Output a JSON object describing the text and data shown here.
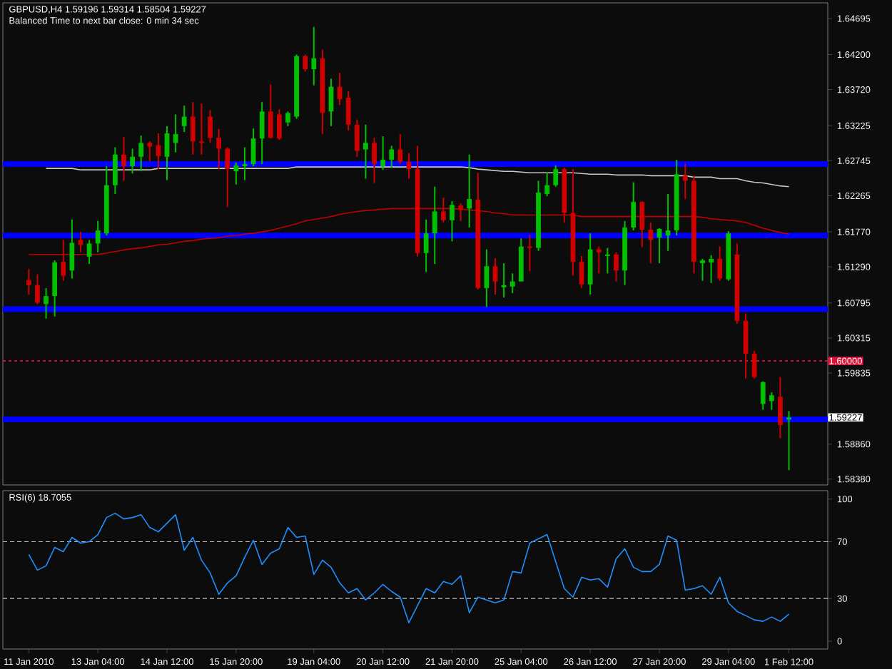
{
  "chart_data": [
    {
      "type": "candlestick",
      "title": "GBPUSD,H4  1.59196 1.59314 1.58504 1.59227",
      "subtitle": "Balanced Time to next bar close: 0 min 34 sec",
      "categories": [
        null,
        null,
        null,
        null,
        null,
        null,
        null,
        null,
        null,
        null,
        null,
        null,
        null,
        null,
        null,
        null,
        null,
        null,
        null,
        null,
        null,
        null,
        null,
        null,
        null,
        null,
        null,
        null,
        null,
        null,
        null,
        null,
        null,
        null,
        null,
        null,
        null,
        null,
        null,
        null,
        null,
        null,
        null,
        null,
        null,
        null,
        null,
        null,
        null,
        null,
        null,
        null,
        null,
        null,
        null,
        null,
        null,
        null,
        null,
        null,
        null,
        null,
        null,
        null,
        null,
        null,
        null,
        null,
        null,
        null,
        null,
        null,
        null,
        null,
        null,
        null,
        null,
        null,
        null,
        null,
        null,
        null,
        null,
        null,
        null,
        null,
        null,
        null,
        null
      ],
      "ohlc": [
        [
          1.6111,
          1.6126,
          1.6091,
          1.6104
        ],
        [
          1.6104,
          1.6119,
          1.6078,
          1.608
        ],
        [
          1.6078,
          1.61,
          1.6058,
          1.6089
        ],
        [
          1.6089,
          1.6138,
          1.6061,
          1.6135
        ],
        [
          1.6136,
          1.6166,
          1.611,
          1.6117
        ],
        [
          1.6124,
          1.6194,
          1.6113,
          1.6162
        ],
        [
          1.6166,
          1.6177,
          1.6149,
          1.6159
        ],
        [
          1.6143,
          1.6166,
          1.6133,
          1.6161
        ],
        [
          1.6161,
          1.6192,
          1.6149,
          1.6179
        ],
        [
          1.6175,
          1.6267,
          1.6172,
          1.6241
        ],
        [
          1.6241,
          1.6293,
          1.6229,
          1.6283
        ],
        [
          1.6283,
          1.6307,
          1.6247,
          1.6267
        ],
        [
          1.6267,
          1.6291,
          1.6257,
          1.628
        ],
        [
          1.628,
          1.6309,
          1.626,
          1.6299
        ],
        [
          1.6299,
          1.6301,
          1.6274,
          1.6294
        ],
        [
          1.6296,
          1.6312,
          1.6263,
          1.6281
        ],
        [
          1.628,
          1.6322,
          1.6248,
          1.6312
        ],
        [
          1.6299,
          1.6338,
          1.6286,
          1.6311
        ],
        [
          1.6322,
          1.635,
          1.6314,
          1.6335
        ],
        [
          1.6335,
          1.6355,
          1.6283,
          1.6301
        ],
        [
          1.6301,
          1.6353,
          1.6283,
          1.6299
        ],
        [
          1.6335,
          1.6344,
          1.6299,
          1.6306
        ],
        [
          1.6306,
          1.6318,
          1.6263,
          1.6291
        ],
        [
          1.6291,
          1.6293,
          1.6211,
          1.6263
        ],
        [
          1.626,
          1.6272,
          1.6242,
          1.6268
        ],
        [
          1.6267,
          1.6293,
          1.6248,
          1.627
        ],
        [
          1.627,
          1.6319,
          1.6267,
          1.6305
        ],
        [
          1.6305,
          1.6355,
          1.627,
          1.6342
        ],
        [
          1.6342,
          1.6379,
          1.6305,
          1.6306
        ],
        [
          1.6338,
          1.6345,
          1.6303,
          1.6305
        ],
        [
          1.6327,
          1.6342,
          1.6322,
          1.634
        ],
        [
          1.6335,
          1.642,
          1.6332,
          1.6418
        ],
        [
          1.6418,
          1.642,
          1.6397,
          1.64
        ],
        [
          1.64,
          1.6458,
          1.6378,
          1.6415
        ],
        [
          1.6415,
          1.6427,
          1.6311,
          1.634
        ],
        [
          1.6342,
          1.6387,
          1.6322,
          1.6376
        ],
        [
          1.6376,
          1.6395,
          1.6351,
          1.6359
        ],
        [
          1.6361,
          1.637,
          1.6316,
          1.6324
        ],
        [
          1.6324,
          1.6331,
          1.628,
          1.6288
        ],
        [
          1.629,
          1.6324,
          1.625,
          1.6299
        ],
        [
          1.6299,
          1.6306,
          1.6244,
          1.627
        ],
        [
          1.6267,
          1.6308,
          1.6262,
          1.6276
        ],
        [
          1.6276,
          1.6295,
          1.6265,
          1.629
        ],
        [
          1.629,
          1.6311,
          1.627,
          1.6273
        ],
        [
          1.6273,
          1.6285,
          1.625,
          1.6263
        ],
        [
          1.6263,
          1.6295,
          1.6143,
          1.6148
        ],
        [
          1.6148,
          1.6194,
          1.6122,
          1.6175
        ],
        [
          1.6175,
          1.6239,
          1.6133,
          1.6205
        ],
        [
          1.6205,
          1.6224,
          1.619,
          1.6193
        ],
        [
          1.6193,
          1.6219,
          1.6164,
          1.6214
        ],
        [
          1.6213,
          1.6216,
          1.6192,
          1.6208
        ],
        [
          1.6209,
          1.6283,
          1.6183,
          1.6222
        ],
        [
          1.6221,
          1.6258,
          1.6098,
          1.61
        ],
        [
          1.61,
          1.6153,
          1.6074,
          1.613
        ],
        [
          1.613,
          1.6141,
          1.6091,
          1.6109
        ],
        [
          1.6101,
          1.6134,
          1.6087,
          1.6104
        ],
        [
          1.6102,
          1.612,
          1.6093,
          1.6109
        ],
        [
          1.6109,
          1.6168,
          1.6109,
          1.6157
        ],
        [
          1.6157,
          1.6173,
          1.6123,
          1.6155
        ],
        [
          1.6155,
          1.6247,
          1.6151,
          1.6231
        ],
        [
          1.6229,
          1.6259,
          1.6226,
          1.6241
        ],
        [
          1.6241,
          1.6268,
          1.6239,
          1.6263
        ],
        [
          1.6263,
          1.6265,
          1.619,
          1.6203
        ],
        [
          1.6203,
          1.6263,
          1.6117,
          1.6136
        ],
        [
          1.6136,
          1.6144,
          1.61,
          1.6105
        ],
        [
          1.6105,
          1.6175,
          1.6091,
          1.6153
        ],
        [
          1.6153,
          1.6157,
          1.612,
          1.6149
        ],
        [
          1.6144,
          1.6155,
          1.612,
          1.6146
        ],
        [
          1.6146,
          1.6149,
          1.6109,
          1.6124
        ],
        [
          1.6124,
          1.6192,
          1.6104,
          1.6183
        ],
        [
          1.6183,
          1.6245,
          1.6179,
          1.6218
        ],
        [
          1.6218,
          1.6219,
          1.6156,
          1.618
        ],
        [
          1.618,
          1.619,
          1.6134,
          1.6166
        ],
        [
          1.6169,
          1.6182,
          1.6134,
          1.6181
        ],
        [
          1.6172,
          1.6229,
          1.6151,
          1.6179
        ],
        [
          1.6179,
          1.6276,
          1.6172,
          1.6256
        ],
        [
          1.6254,
          1.6271,
          1.6222,
          1.6247
        ],
        [
          1.6247,
          1.6254,
          1.612,
          1.6136
        ],
        [
          1.6134,
          1.614,
          1.611,
          1.6138
        ],
        [
          1.6135,
          1.6145,
          1.6107,
          1.614
        ],
        [
          1.614,
          1.6157,
          1.611,
          1.6113
        ],
        [
          1.6112,
          1.6178,
          1.611,
          1.6175
        ],
        [
          1.6146,
          1.6161,
          1.6051,
          1.6055
        ],
        [
          1.6055,
          1.6065,
          1.5976,
          1.601
        ],
        [
          1.601,
          1.6014,
          1.5976,
          1.5978
        ],
        [
          1.5941,
          1.5972,
          1.5933,
          1.5971
        ],
        [
          1.5945,
          1.5957,
          1.5933,
          1.5953
        ],
        [
          1.5951,
          1.5978,
          1.5894,
          1.5912
        ],
        [
          1.59196,
          1.59314,
          1.58504,
          1.59227
        ]
      ],
      "series": [
        {
          "type": "line",
          "color": "#c8c8c8",
          "values": [
            null,
            null,
            1.6264,
            1.6264,
            1.6264,
            1.6264,
            1.6262,
            1.6262,
            1.6262,
            1.6262,
            1.6262,
            1.6262,
            1.6262,
            1.6262,
            1.6262,
            1.6264,
            1.6264,
            1.6264,
            1.6264,
            1.6264,
            1.6264,
            1.6264,
            1.6264,
            1.6264,
            1.6264,
            1.6264,
            1.6264,
            1.6264,
            1.6264,
            1.6264,
            1.6264,
            1.6266,
            1.6266,
            1.6266,
            1.6266,
            1.6266,
            1.6266,
            1.6266,
            1.6266,
            1.6266,
            1.6266,
            1.6266,
            1.6266,
            1.6266,
            1.6266,
            1.6266,
            1.6266,
            1.6266,
            1.6266,
            1.6266,
            1.6266,
            1.6265,
            1.6263,
            1.6262,
            1.6261,
            1.626,
            1.626,
            1.6259,
            1.6258,
            1.6258,
            1.6258,
            1.6258,
            1.6258,
            1.6258,
            1.6257,
            1.6256,
            1.6256,
            1.6256,
            1.6255,
            1.6255,
            1.6255,
            1.6255,
            1.6254,
            1.6254,
            1.6254,
            1.6254,
            1.6254,
            1.6252,
            1.6252,
            1.6252,
            1.625,
            1.625,
            1.625,
            1.6247,
            1.6245,
            1.6244,
            1.6242,
            1.624,
            1.6239
          ]
        },
        {
          "type": "line",
          "color": "#c00000",
          "values": [
            1.6146,
            1.6146,
            1.6146,
            1.6146,
            1.6146,
            1.6146,
            1.6146,
            1.6146,
            1.6146,
            1.6148,
            1.615,
            1.6152,
            1.6154,
            1.6155,
            1.6157,
            1.6159,
            1.616,
            1.6162,
            1.6164,
            1.6165,
            1.6167,
            1.6168,
            1.6169,
            1.6171,
            1.6172,
            1.6174,
            1.6175,
            1.6177,
            1.6179,
            1.6182,
            1.6185,
            1.6188,
            1.6192,
            1.6194,
            1.6196,
            1.6198,
            1.6201,
            1.6203,
            1.6205,
            1.6206,
            1.6207,
            1.6208,
            1.6209,
            1.6209,
            1.6209,
            1.6209,
            1.6209,
            1.6209,
            1.6209,
            1.6209,
            1.6208,
            1.6207,
            1.6206,
            1.6205,
            1.6203,
            1.6202,
            1.62,
            1.62,
            1.62,
            1.62,
            1.62,
            1.62,
            1.62,
            1.62,
            1.6198,
            1.6198,
            1.6198,
            1.6198,
            1.6198,
            1.6198,
            1.6198,
            1.6198,
            1.6198,
            1.6198,
            1.6198,
            1.6198,
            1.6198,
            1.6198,
            1.6197,
            1.6195,
            1.6194,
            1.6193,
            1.6192,
            1.619,
            1.6186,
            1.6182,
            1.6179,
            1.6176,
            1.6174
          ]
        }
      ],
      "ylim": [
        1.583,
        1.6491
      ],
      "yticks": [
        1.64695,
        {
          "value": 1.642,
          "label": "1.64200"
        },
        {
          "value": 1.6372,
          "label": "1.63720"
        },
        1.63225,
        1.62745,
        1.62265,
        {
          "value": 1.6177,
          "label": "1.61770"
        },
        {
          "value": 1.6129,
          "label": "1.61290"
        },
        1.60795,
        1.60315,
        1.59835,
        {
          "value": 1.5886,
          "label": "1.58860"
        },
        {
          "value": 1.5838,
          "label": "1.58380"
        }
      ],
      "ref_lines": [
        {
          "axis": "y",
          "value": 1.627,
          "color": "#0000ff"
        },
        {
          "axis": "y",
          "value": 1.6172,
          "color": "#0000ff"
        },
        {
          "axis": "y",
          "value": 1.6071,
          "color": "#0000ff"
        },
        {
          "axis": "y",
          "value": 1.592,
          "color": "#0000ff"
        },
        {
          "axis": "y",
          "value": 1.6,
          "label": "1.60000",
          "color": "#dc143c",
          "line_style": "dotted"
        }
      ],
      "annotations": [
        "1.59227"
      ],
      "tick_labels": "y"
    },
    {
      "type": "line",
      "title": "RSI(6) 18.7055",
      "categories": [
        "11 Jan 2010",
        null,
        null,
        null,
        null,
        null,
        null,
        null,
        "13 Jan 04:00",
        null,
        null,
        null,
        null,
        null,
        null,
        null,
        "14 Jan 12:00",
        null,
        null,
        null,
        null,
        null,
        null,
        null,
        "15 Jan 20:00",
        null,
        null,
        null,
        null,
        null,
        null,
        null,
        null,
        "19 Jan 04:00",
        null,
        null,
        null,
        null,
        null,
        null,
        null,
        "20 Jan 12:00",
        null,
        null,
        null,
        null,
        null,
        null,
        null,
        "21 Jan 20:00",
        null,
        null,
        null,
        null,
        null,
        null,
        null,
        "25 Jan 04:00",
        null,
        null,
        null,
        null,
        null,
        null,
        null,
        "26 Jan 12:00",
        null,
        null,
        null,
        null,
        null,
        null,
        null,
        "27 Jan 20:00",
        null,
        null,
        null,
        null,
        null,
        null,
        null,
        "29 Jan 04:00",
        null,
        null,
        null,
        null,
        null,
        null,
        "1 Feb 12:00"
      ],
      "series": [
        {
          "color": "#1e90ff",
          "values": [
            61,
            50,
            53,
            66,
            63,
            73,
            69,
            70,
            75,
            87,
            90,
            86,
            87,
            89,
            80,
            77,
            83,
            89,
            64,
            73,
            57,
            48,
            33,
            41,
            46,
            59,
            71,
            54,
            62,
            65,
            80,
            73,
            74,
            47,
            57,
            52,
            41,
            34,
            37,
            29,
            34,
            40,
            35,
            31,
            13,
            25,
            37,
            34,
            42,
            40,
            46,
            20,
            31,
            29,
            27,
            29,
            49,
            48,
            69,
            72,
            75,
            56,
            37,
            31,
            45,
            43,
            44,
            38,
            58,
            65,
            52,
            49,
            49,
            54,
            74,
            71,
            36,
            37,
            39,
            33,
            45,
            27,
            21,
            18,
            15,
            14,
            17,
            14,
            19
          ]
        }
      ],
      "ylim": [
        -5.5,
        105.9
      ],
      "yticks": [
        0,
        30,
        70,
        100
      ],
      "ref_lines": [
        {
          "axis": "y",
          "value": 70,
          "color": "#c0c0c0",
          "line_style": "dashed"
        },
        {
          "axis": "y",
          "value": 30,
          "color": "#c0c0c0",
          "line_style": "dashed"
        }
      ]
    }
  ]
}
